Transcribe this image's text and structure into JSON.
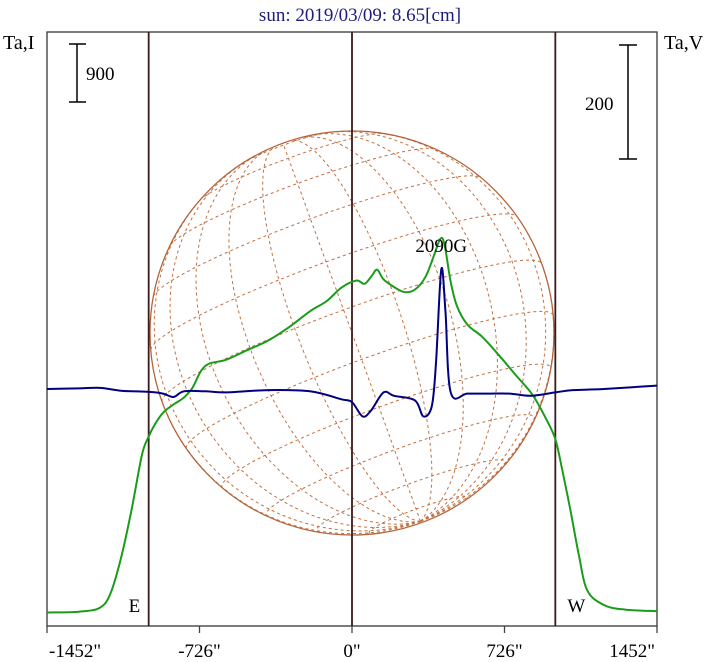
{
  "chart_data": {
    "type": "line",
    "title": "sun: 2019/03/09: 8.65[cm]",
    "left_axis_label": "Ta,I",
    "right_axis_label": "Ta,V",
    "left_scale_bar_value": 900,
    "right_scale_bar_value": 200,
    "x_unit": "arcsec",
    "x_ticks": [
      -1452,
      -726,
      0,
      726,
      1452
    ],
    "x_tick_labels": [
      "-1452\"",
      "-726\"",
      "0\"",
      "726\"",
      "1452\""
    ],
    "xlim": [
      -1452,
      1452
    ],
    "solar_limb_markers": [
      {
        "x": -968,
        "label": "E"
      },
      {
        "x": 0,
        "label": ""
      },
      {
        "x": 968,
        "label": "W"
      }
    ],
    "annotations": [
      {
        "text": "2090G",
        "x": 425
      }
    ],
    "series": [
      {
        "key": "stokes_I",
        "color": "#1a9c1a",
        "axis": "left",
        "points": [
          [
            -1452,
            55
          ],
          [
            -1300,
            68
          ],
          [
            -1200,
            130
          ],
          [
            -1150,
            350
          ],
          [
            -1100,
            900
          ],
          [
            -1050,
            1650
          ],
          [
            -1000,
            2520
          ],
          [
            -968,
            2810
          ],
          [
            -940,
            2990
          ],
          [
            -900,
            3180
          ],
          [
            -850,
            3310
          ],
          [
            -800,
            3420
          ],
          [
            -760,
            3570
          ],
          [
            -720,
            3830
          ],
          [
            -680,
            3950
          ],
          [
            -600,
            4010
          ],
          [
            -500,
            4160
          ],
          [
            -400,
            4310
          ],
          [
            -300,
            4520
          ],
          [
            -200,
            4770
          ],
          [
            -120,
            4930
          ],
          [
            -50,
            5140
          ],
          [
            20,
            5250
          ],
          [
            60,
            5200
          ],
          [
            95,
            5330
          ],
          [
            120,
            5420
          ],
          [
            150,
            5270
          ],
          [
            200,
            5150
          ],
          [
            250,
            5070
          ],
          [
            300,
            5110
          ],
          [
            350,
            5310
          ],
          [
            390,
            5640
          ],
          [
            420,
            5900
          ],
          [
            440,
            5820
          ],
          [
            470,
            5230
          ],
          [
            500,
            4850
          ],
          [
            550,
            4560
          ],
          [
            620,
            4370
          ],
          [
            700,
            4080
          ],
          [
            780,
            3770
          ],
          [
            860,
            3460
          ],
          [
            920,
            3110
          ],
          [
            968,
            2770
          ],
          [
            1000,
            2300
          ],
          [
            1040,
            1650
          ],
          [
            1080,
            950
          ],
          [
            1120,
            400
          ],
          [
            1200,
            170
          ],
          [
            1300,
            100
          ],
          [
            1452,
            75
          ]
        ]
      },
      {
        "key": "stokes_V",
        "color": "#000080",
        "axis": "right",
        "points": [
          [
            -1452,
            0
          ],
          [
            -1300,
            1
          ],
          [
            -1200,
            2
          ],
          [
            -1100,
            -3
          ],
          [
            -968,
            -5
          ],
          [
            -900,
            -8
          ],
          [
            -850,
            -14
          ],
          [
            -800,
            -4
          ],
          [
            -700,
            -4
          ],
          [
            -600,
            -6
          ],
          [
            -400,
            -2
          ],
          [
            -200,
            -4
          ],
          [
            -50,
            -18
          ],
          [
            0,
            -23
          ],
          [
            50,
            -48
          ],
          [
            90,
            -38
          ],
          [
            150,
            -6
          ],
          [
            200,
            -12
          ],
          [
            300,
            -20
          ],
          [
            340,
            -48
          ],
          [
            380,
            -30
          ],
          [
            400,
            46
          ],
          [
            425,
            210
          ],
          [
            445,
            135
          ],
          [
            470,
            -6
          ],
          [
            550,
            -8
          ],
          [
            650,
            -8
          ],
          [
            750,
            -8
          ],
          [
            850,
            -12
          ],
          [
            968,
            -6
          ],
          [
            1050,
            -2
          ],
          [
            1200,
            0
          ],
          [
            1452,
            6
          ]
        ]
      }
    ]
  }
}
